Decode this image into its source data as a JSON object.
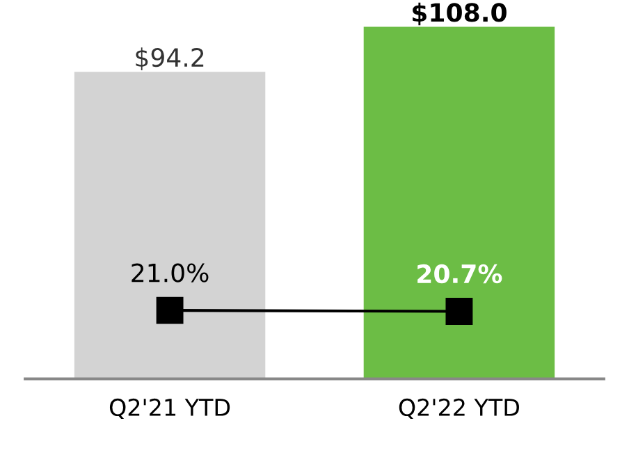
{
  "chart_data": {
    "type": "bar",
    "categories": [
      "Q2'21 YTD",
      "Q2'22 YTD"
    ],
    "tick_labels": "x",
    "grid": false,
    "legend": false,
    "series": [
      {
        "colors": [
          "#d3d3d3",
          "#6cbd45"
        ],
        "values": [
          94.2,
          108.0
        ],
        "value_labels": [
          "$94.2",
          "$108.0"
        ]
      },
      {
        "type": "line",
        "color": "#000000",
        "marker": "square",
        "line_style": "solid",
        "values": [
          21.0,
          20.7
        ],
        "value_labels": [
          "21.0%",
          "20.7%"
        ]
      }
    ]
  }
}
